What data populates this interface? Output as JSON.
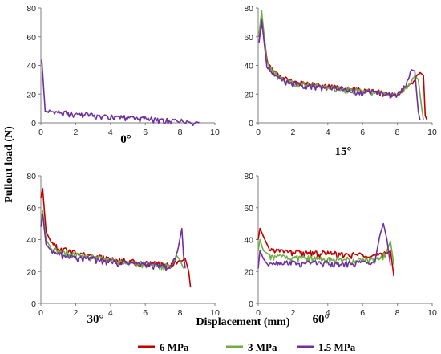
{
  "figure": {
    "ylabel": "Pullout load (N)",
    "xlabel": "Displacement (mm)",
    "legend": [
      {
        "label": "6 MPa",
        "color": "#c00000"
      },
      {
        "label": "3 MPa",
        "color": "#70ad47"
      },
      {
        "label": "1.5 MPa",
        "color": "#7030a0"
      }
    ]
  },
  "chart_data": [
    {
      "type": "line",
      "caption": "0°",
      "xlim": [
        0,
        10
      ],
      "ylim": [
        0,
        80
      ],
      "xticks": [
        0,
        2,
        4,
        6,
        8,
        10
      ],
      "yticks": [
        0,
        20,
        40,
        60,
        80
      ],
      "grid": false,
      "series": [
        {
          "name": "1.5 MPa",
          "color": "#7030a0",
          "x": [
            0.05,
            0.25,
            9.1
          ],
          "y": [
            44,
            8,
            0.5
          ]
        }
      ]
    },
    {
      "type": "line",
      "caption": "15°",
      "xlim": [
        0,
        10
      ],
      "ylim": [
        0,
        80
      ],
      "xticks": [
        0,
        2,
        4,
        6,
        8,
        10
      ],
      "yticks": [
        0,
        20,
        40,
        60,
        80
      ],
      "grid": false,
      "series": [
        {
          "name": "6 MPa",
          "color": "#c00000",
          "x": [
            0.05,
            0.25,
            0.5,
            1.0,
            1.5,
            2.0,
            3.0,
            4.0,
            5.0,
            6.0,
            7.0,
            8.0,
            8.5,
            9.0,
            9.3,
            9.5,
            9.6,
            9.7
          ],
          "y": [
            60,
            70,
            44,
            35,
            31,
            29,
            27,
            25.5,
            24,
            23,
            21.5,
            20,
            24,
            30,
            35,
            33,
            5,
            2
          ]
        },
        {
          "name": "3 MPa",
          "color": "#70ad47",
          "x": [
            0.05,
            0.2,
            0.5,
            1.0,
            1.5,
            2.0,
            3.0,
            4.0,
            5.0,
            6.0,
            7.0,
            8.0,
            8.6,
            9.0,
            9.2,
            9.4,
            9.5
          ],
          "y": [
            62,
            78,
            42,
            34,
            30,
            28,
            26.5,
            25,
            23.5,
            22.5,
            21,
            19.5,
            25,
            33,
            30,
            10,
            2
          ]
        },
        {
          "name": "1.5 MPa",
          "color": "#7030a0",
          "x": [
            0.05,
            0.2,
            0.5,
            1.0,
            1.5,
            2.0,
            3.0,
            4.0,
            5.0,
            6.0,
            7.0,
            8.0,
            8.5,
            8.8,
            9.0,
            9.2,
            9.3
          ],
          "y": [
            56,
            72,
            40,
            32,
            29,
            27.5,
            26,
            24.5,
            23,
            22,
            21,
            19,
            27,
            37,
            36,
            8,
            2
          ]
        }
      ]
    },
    {
      "type": "line",
      "caption": "30°",
      "xlim": [
        0,
        10
      ],
      "ylim": [
        0,
        80
      ],
      "xticks": [
        0,
        2,
        4,
        6,
        8,
        10
      ],
      "yticks": [
        0,
        20,
        40,
        60,
        80
      ],
      "grid": false,
      "series": [
        {
          "name": "6 MPa",
          "color": "#c00000",
          "x": [
            0.0,
            0.1,
            0.3,
            0.6,
            1.0,
            2.0,
            3.0,
            4.0,
            5.0,
            6.0,
            7.0,
            7.5,
            8.0,
            8.3,
            8.5,
            8.6
          ],
          "y": [
            66,
            72,
            45,
            38,
            35,
            32,
            30,
            28,
            27,
            26,
            25,
            24.5,
            26,
            28,
            20,
            10
          ]
        },
        {
          "name": "3 MPa",
          "color": "#70ad47",
          "x": [
            0.0,
            0.1,
            0.3,
            0.6,
            1.0,
            2.0,
            3.0,
            4.0,
            5.0,
            6.0,
            7.0,
            7.5,
            7.8,
            8.0,
            8.2
          ],
          "y": [
            52,
            58,
            40,
            35,
            33,
            30.5,
            29,
            27,
            26,
            25,
            24,
            23.5,
            30,
            27,
            22
          ]
        },
        {
          "name": "1.5 MPa",
          "color": "#7030a0",
          "x": [
            0.0,
            0.1,
            0.3,
            0.6,
            1.0,
            2.0,
            3.0,
            4.0,
            5.0,
            6.0,
            7.0,
            7.5,
            7.9,
            8.1,
            8.2,
            8.3
          ],
          "y": [
            48,
            56,
            37,
            33,
            31,
            29,
            28,
            26.5,
            25.5,
            24.5,
            23.5,
            23,
            35,
            47,
            30,
            22
          ]
        }
      ]
    },
    {
      "type": "line",
      "caption": "60°",
      "xlim": [
        0,
        10
      ],
      "ylim": [
        0,
        80
      ],
      "xticks": [
        0,
        2,
        4,
        6,
        8,
        10
      ],
      "yticks": [
        0,
        20,
        40,
        60,
        80
      ],
      "grid": false,
      "series": [
        {
          "name": "6 MPa",
          "color": "#c00000",
          "x": [
            0.0,
            0.1,
            0.3,
            0.6,
            1.0,
            2.0,
            3.0,
            4.0,
            5.0,
            6.0,
            6.8,
            7.2,
            7.6,
            7.8
          ],
          "y": [
            40,
            47,
            42,
            34,
            33,
            32.5,
            32,
            31.5,
            31,
            30.5,
            30,
            31,
            33,
            17
          ]
        },
        {
          "name": "3 MPa",
          "color": "#70ad47",
          "x": [
            0.0,
            0.1,
            0.3,
            0.6,
            1.0,
            2.0,
            3.0,
            4.0,
            5.0,
            6.0,
            7.0,
            7.4,
            7.6,
            7.8
          ],
          "y": [
            33,
            40,
            33,
            30,
            29.5,
            29,
            28.5,
            28,
            28,
            27.5,
            28,
            33,
            39,
            24
          ]
        },
        {
          "name": "1.5 MPa",
          "color": "#7030a0",
          "x": [
            0.0,
            0.1,
            0.3,
            0.6,
            1.0,
            2.0,
            3.0,
            4.0,
            5.0,
            6.0,
            6.7,
            7.0,
            7.2,
            7.4,
            7.6
          ],
          "y": [
            22,
            33,
            28,
            26,
            25.5,
            25.5,
            25.5,
            25.5,
            25.5,
            25.5,
            26,
            43,
            50,
            40,
            24
          ]
        }
      ]
    }
  ]
}
